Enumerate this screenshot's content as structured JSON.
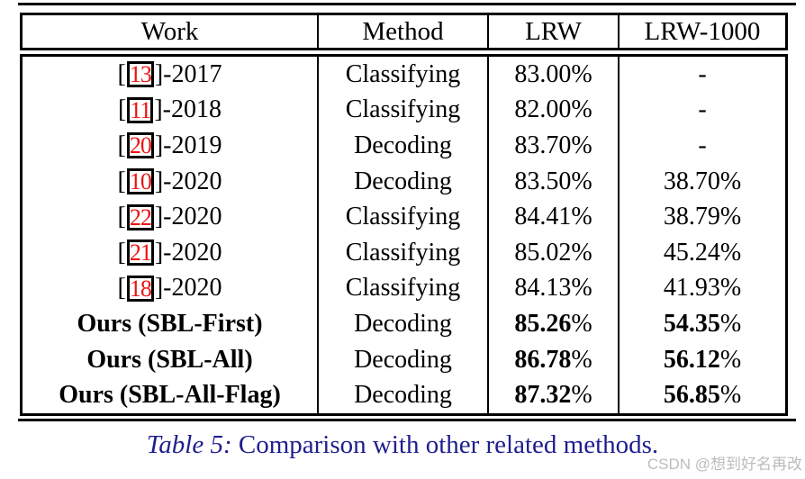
{
  "table": {
    "headers": [
      "Work",
      "Method",
      "LRW",
      "LRW-1000"
    ],
    "rows": [
      {
        "prefix": "[",
        "cite": "13",
        "suffix": "]-2017",
        "method": "Classifying",
        "lrw": "83.00%",
        "lrw1000": "-",
        "bold": false
      },
      {
        "prefix": "[",
        "cite": "11",
        "suffix": "]-2018",
        "method": "Classifying",
        "lrw": "82.00%",
        "lrw1000": "-",
        "bold": false
      },
      {
        "prefix": "[",
        "cite": "20",
        "suffix": "]-2019",
        "method": "Decoding",
        "lrw": "83.70%",
        "lrw1000": "-",
        "bold": false
      },
      {
        "prefix": "[",
        "cite": "10",
        "suffix": "]-2020",
        "method": "Decoding",
        "lrw": "83.50%",
        "lrw1000": "38.70%",
        "bold": false
      },
      {
        "prefix": "[",
        "cite": "22",
        "suffix": "]-2020",
        "method": "Classifying",
        "lrw": "84.41%",
        "lrw1000": "38.79%",
        "bold": false
      },
      {
        "prefix": "[",
        "cite": "21",
        "suffix": "]-2020",
        "method": "Classifying",
        "lrw": "85.02%",
        "lrw1000": "45.24%",
        "bold": false
      },
      {
        "prefix": "[",
        "cite": "18",
        "suffix": "]-2020",
        "method": "Classifying",
        "lrw": "84.13%",
        "lrw1000": "41.93%",
        "bold": false
      },
      {
        "work": "Ours (SBL-First)",
        "method": "Decoding",
        "lrw": "85.26%",
        "lrw1000": "54.35%",
        "bold": true
      },
      {
        "work": "Ours (SBL-All)",
        "method": "Decoding",
        "lrw": "86.78%",
        "lrw1000": "56.12%",
        "bold": true
      },
      {
        "work": "Ours (SBL-All-Flag)",
        "method": "Decoding",
        "lrw": "87.32%",
        "lrw1000": "56.85%",
        "bold": true
      }
    ]
  },
  "caption": {
    "label": "Table 5:",
    "text": "Comparison with other related methods."
  },
  "watermark": {
    "text": "CSDN @想到好名再改"
  },
  "colors": {
    "citation_red": "#ee1111",
    "caption_blue": "#1e1e8e",
    "watermark_gray": "#bcbcbc",
    "border_black": "#000000"
  }
}
